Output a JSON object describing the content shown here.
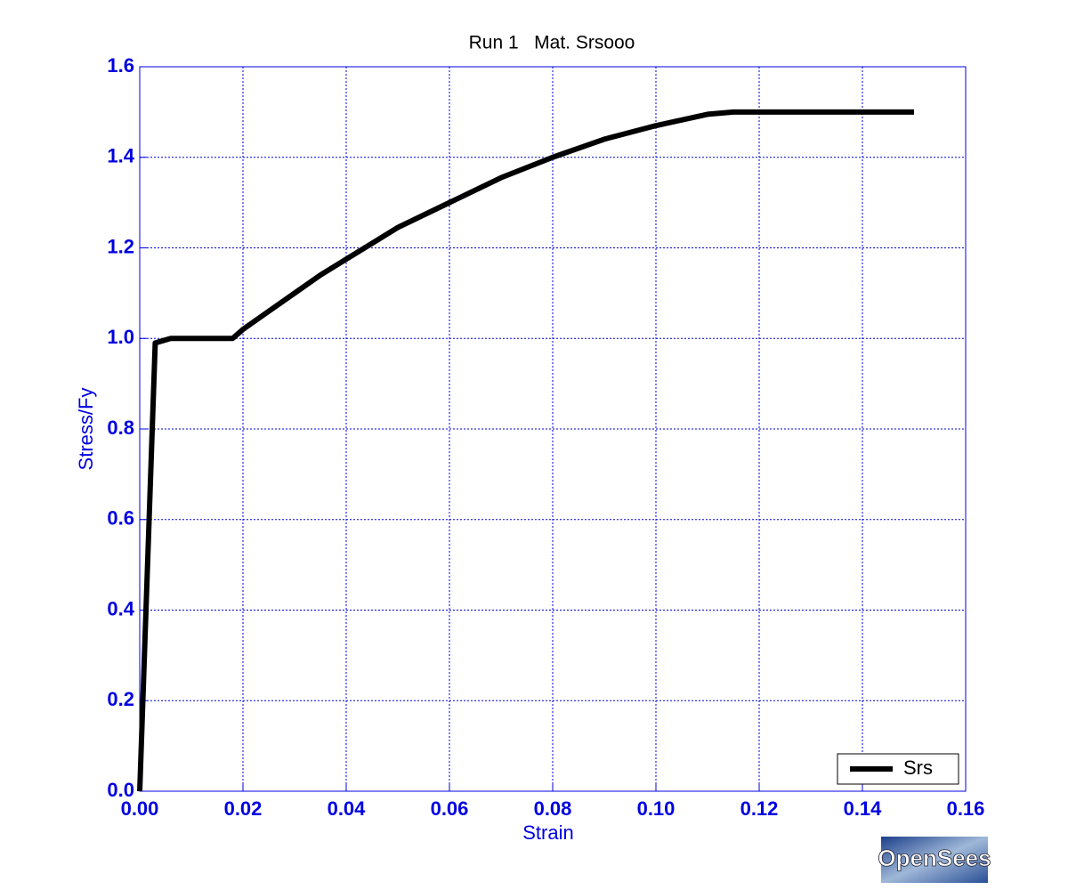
{
  "chart_data": {
    "type": "line",
    "title": "Run 1   Mat. Srsooo",
    "x_label": "Strain",
    "y_label": "Stress/Fy",
    "x": [
      0,
      0.003,
      0.006,
      0.018,
      0.02,
      0.025,
      0.03,
      0.035,
      0.04,
      0.045,
      0.05,
      0.06,
      0.07,
      0.08,
      0.09,
      0.1,
      0.11,
      0.115,
      0.12,
      0.15
    ],
    "series": [
      {
        "name": "Srs",
        "color": "#000000",
        "values": [
          0,
          0.99,
          1.0,
          1.0,
          1.02,
          1.06,
          1.1,
          1.14,
          1.175,
          1.21,
          1.245,
          1.3,
          1.355,
          1.4,
          1.44,
          1.47,
          1.495,
          1.5,
          1.5,
          1.5
        ]
      }
    ],
    "xlim": [
      0,
      0.16
    ],
    "ylim": [
      0,
      1.6
    ],
    "xticks": [
      {
        "value": 0,
        "label": "0.00"
      },
      {
        "value": 0.02,
        "label": "0.02"
      },
      {
        "value": 0.04,
        "label": "0.04"
      },
      {
        "value": 0.06,
        "label": "0.06"
      },
      {
        "value": 0.08,
        "label": "0.08"
      },
      {
        "value": 0.1,
        "label": "0.10"
      },
      {
        "value": 0.12,
        "label": "0.12"
      },
      {
        "value": 0.14,
        "label": "0.14"
      },
      {
        "value": 0.16,
        "label": "0.16"
      }
    ],
    "yticks": [
      {
        "value": 0,
        "label": "0.0"
      },
      {
        "value": 0.2,
        "label": "0.2"
      },
      {
        "value": 0.4,
        "label": "0.4"
      },
      {
        "value": 0.6,
        "label": "0.6"
      },
      {
        "value": 0.8,
        "label": "0.8"
      },
      {
        "value": 1.0,
        "label": "1.0"
      },
      {
        "value": 1.2,
        "label": "1.2"
      },
      {
        "value": 1.4,
        "label": "1.4"
      },
      {
        "value": 1.6,
        "label": "1.6"
      }
    ],
    "grid": true,
    "legend": "lower right",
    "logo": "OpenSees"
  }
}
